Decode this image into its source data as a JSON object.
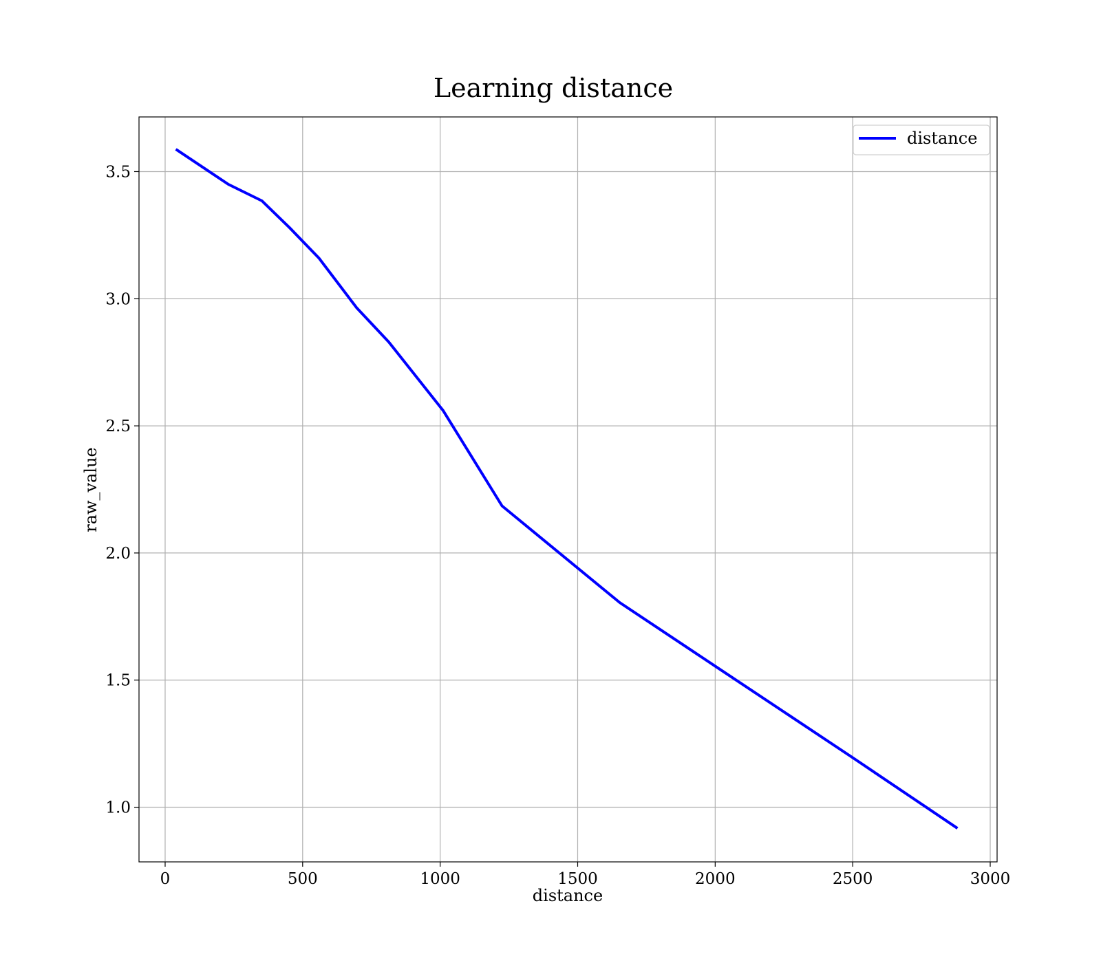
{
  "chart_data": {
    "type": "line",
    "title": "Learning distance",
    "xlabel": "distance",
    "ylabel": "raw_value",
    "xlim": [
      -95,
      3025
    ],
    "ylim": [
      0.785,
      3.715
    ],
    "x_ticks": [
      0,
      500,
      1000,
      1500,
      2000,
      2500,
      3000
    ],
    "x_tick_labels": [
      "0",
      "500",
      "1000",
      "1500",
      "2000",
      "2500",
      "3000"
    ],
    "y_ticks": [
      1.0,
      1.5,
      2.0,
      2.5,
      3.0,
      3.5
    ],
    "y_tick_labels": [
      "1.0",
      "1.5",
      "2.0",
      "2.5",
      "3.0",
      "3.5"
    ],
    "grid": true,
    "legend": {
      "position": "upper-right",
      "entries": [
        "distance"
      ]
    },
    "series": [
      {
        "name": "distance",
        "color": "#0000ff",
        "x": [
          43,
          230,
          352,
          452,
          559,
          696,
          813,
          1011,
          1225,
          1653,
          2000,
          2500,
          2877
        ],
        "y": [
          3.585,
          3.45,
          3.385,
          3.28,
          3.16,
          2.965,
          2.83,
          2.56,
          2.185,
          1.805,
          1.555,
          1.195,
          0.92
        ]
      }
    ]
  }
}
